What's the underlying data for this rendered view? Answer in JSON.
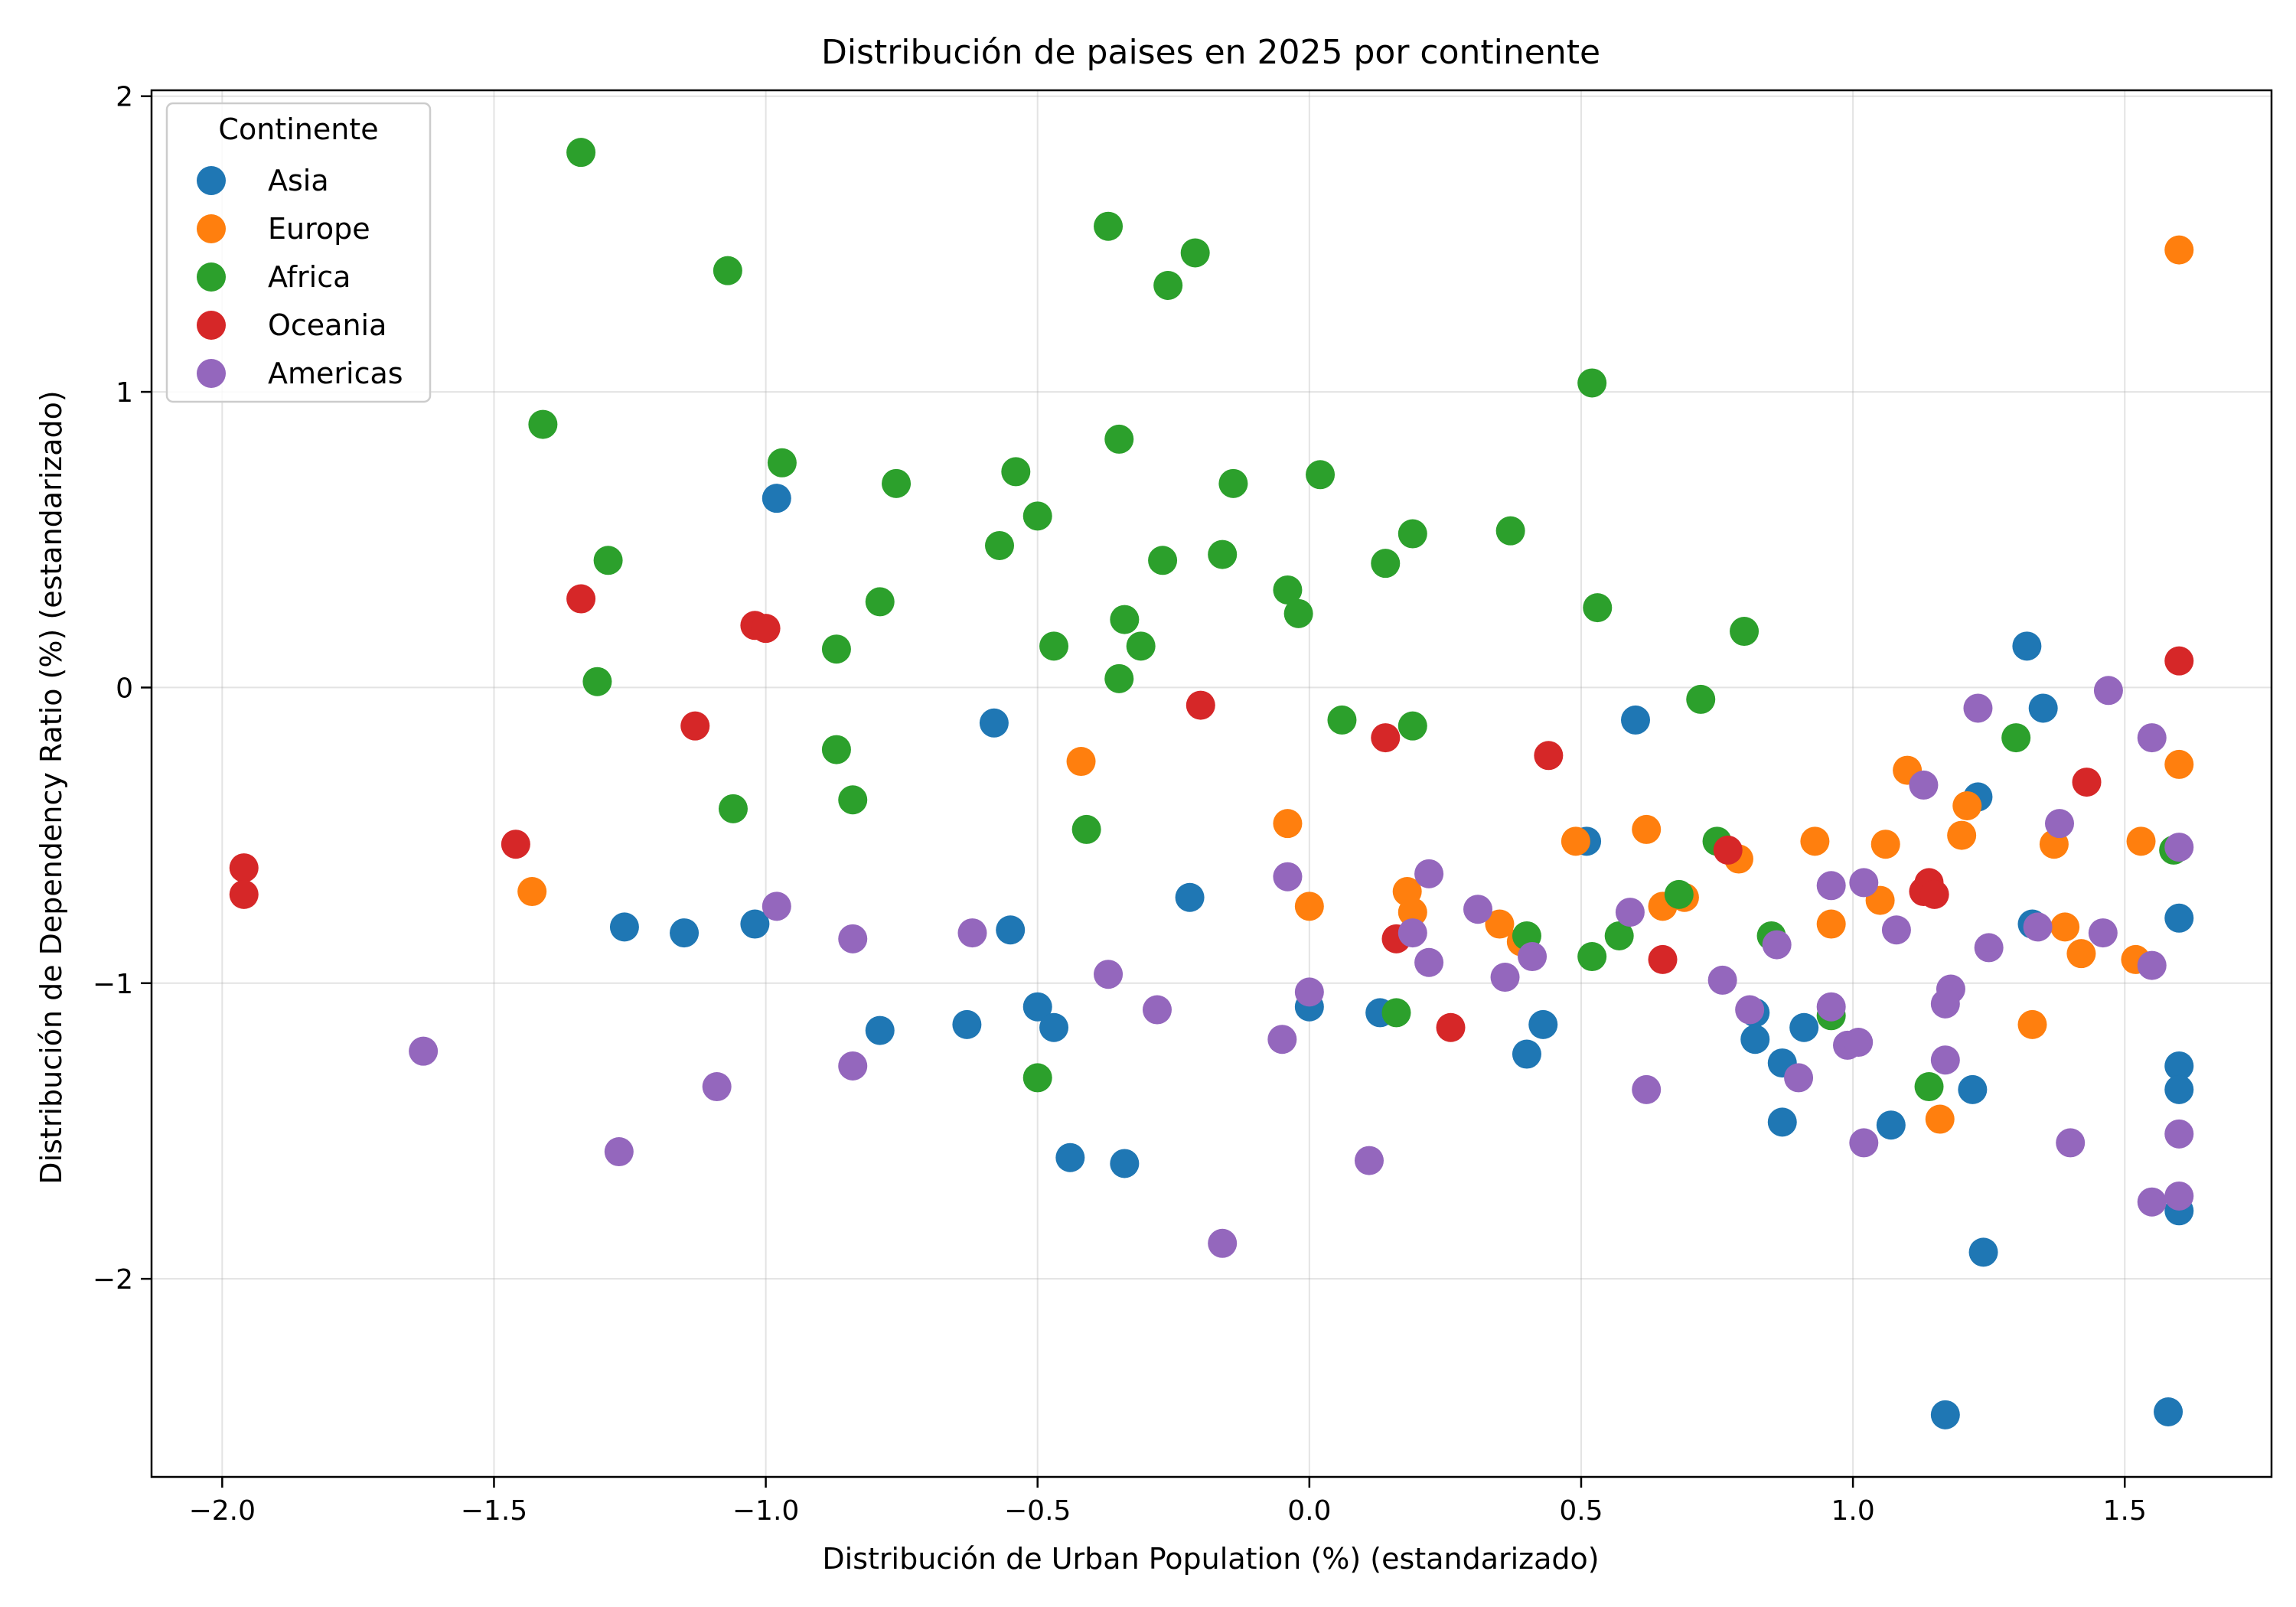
{
  "chart_data": {
    "type": "scatter",
    "title": "Distribución de paises en 2025 por continente",
    "xlabel": "Distribución de Urban Population (%) (estandarizado)",
    "ylabel": "Distribución de Dependency Ratio (%) (estandarizado)",
    "xlim": [
      -2.13,
      1.77
    ],
    "ylim": [
      -2.67,
      2.02
    ],
    "xticks": [
      -2.0,
      -1.5,
      -1.0,
      -0.5,
      0.0,
      0.5,
      1.0,
      1.5
    ],
    "xtick_labels": [
      "−2.0",
      "−1.5",
      "−1.0",
      "−0.5",
      "0.0",
      "0.5",
      "1.0",
      "1.5"
    ],
    "yticks": [
      -2,
      -1,
      0,
      1,
      2
    ],
    "ytick_labels": [
      "−2",
      "−1",
      "0",
      "1",
      "2"
    ],
    "grid": true,
    "legend": {
      "title": "Continente",
      "position": "top-left"
    },
    "series": [
      {
        "name": "Asia",
        "color": "#1f77b4",
        "points": [
          [
            -0.98,
            0.64
          ],
          [
            -0.58,
            -0.12
          ],
          [
            0.6,
            -0.11
          ],
          [
            1.32,
            0.14
          ],
          [
            1.35,
            -0.07
          ],
          [
            1.23,
            -0.37
          ],
          [
            0.51,
            -0.52
          ],
          [
            -1.26,
            -0.81
          ],
          [
            -1.15,
            -0.83
          ],
          [
            -1.02,
            -0.8
          ],
          [
            -0.55,
            -0.82
          ],
          [
            -0.22,
            -0.71
          ],
          [
            -0.5,
            -1.08
          ],
          [
            -0.47,
            -1.15
          ],
          [
            -0.63,
            -1.14
          ],
          [
            -0.79,
            -1.16
          ],
          [
            0.0,
            -1.08
          ],
          [
            0.13,
            -1.1
          ],
          [
            0.43,
            -1.14
          ],
          [
            0.4,
            -1.24
          ],
          [
            0.82,
            -1.1
          ],
          [
            0.82,
            -1.19
          ],
          [
            0.87,
            -1.27
          ],
          [
            0.91,
            -1.15
          ],
          [
            0.87,
            -1.47
          ],
          [
            1.07,
            -1.48
          ],
          [
            1.22,
            -1.36
          ],
          [
            1.33,
            -0.8
          ],
          [
            1.6,
            -0.78
          ],
          [
            1.6,
            -1.28
          ],
          [
            1.6,
            -1.36
          ],
          [
            1.6,
            -1.77
          ],
          [
            1.24,
            -1.91
          ],
          [
            -0.44,
            -1.59
          ],
          [
            -0.34,
            -1.61
          ],
          [
            1.17,
            -2.46
          ],
          [
            1.58,
            -2.45
          ]
        ]
      },
      {
        "name": "Europe",
        "color": "#ff7f0e",
        "points": [
          [
            1.6,
            1.48
          ],
          [
            1.6,
            -0.26
          ],
          [
            1.1,
            -0.28
          ],
          [
            1.21,
            -0.4
          ],
          [
            -0.42,
            -0.25
          ],
          [
            -0.04,
            -0.46
          ],
          [
            0.49,
            -0.52
          ],
          [
            0.62,
            -0.48
          ],
          [
            0.79,
            -0.58
          ],
          [
            0.93,
            -0.52
          ],
          [
            1.06,
            -0.53
          ],
          [
            1.2,
            -0.5
          ],
          [
            1.37,
            -0.53
          ],
          [
            1.53,
            -0.52
          ],
          [
            -1.43,
            -0.69
          ],
          [
            0.0,
            -0.74
          ],
          [
            0.18,
            -0.69
          ],
          [
            0.19,
            -0.76
          ],
          [
            0.35,
            -0.8
          ],
          [
            0.39,
            -0.86
          ],
          [
            0.65,
            -0.74
          ],
          [
            0.69,
            -0.71
          ],
          [
            0.96,
            -0.8
          ],
          [
            1.05,
            -0.72
          ],
          [
            1.39,
            -0.81
          ],
          [
            1.42,
            -0.9
          ],
          [
            1.52,
            -0.92
          ],
          [
            1.33,
            -1.14
          ],
          [
            1.16,
            -1.46
          ]
        ]
      },
      {
        "name": "Africa",
        "color": "#2ca02c",
        "points": [
          [
            -1.34,
            1.81
          ],
          [
            -0.37,
            1.56
          ],
          [
            -0.21,
            1.47
          ],
          [
            -1.07,
            1.41
          ],
          [
            -0.26,
            1.36
          ],
          [
            0.52,
            1.03
          ],
          [
            -1.41,
            0.89
          ],
          [
            -0.35,
            0.84
          ],
          [
            -0.97,
            0.76
          ],
          [
            -0.54,
            0.73
          ],
          [
            0.02,
            0.72
          ],
          [
            -0.76,
            0.69
          ],
          [
            -0.14,
            0.69
          ],
          [
            -0.5,
            0.58
          ],
          [
            0.37,
            0.53
          ],
          [
            0.19,
            0.52
          ],
          [
            -0.57,
            0.48
          ],
          [
            -0.16,
            0.45
          ],
          [
            -1.29,
            0.43
          ],
          [
            -0.27,
            0.43
          ],
          [
            0.14,
            0.42
          ],
          [
            -0.04,
            0.33
          ],
          [
            -0.79,
            0.29
          ],
          [
            -0.02,
            0.25
          ],
          [
            0.53,
            0.27
          ],
          [
            -0.34,
            0.23
          ],
          [
            0.8,
            0.19
          ],
          [
            -0.87,
            0.13
          ],
          [
            -0.47,
            0.14
          ],
          [
            -0.31,
            0.14
          ],
          [
            -1.31,
            0.02
          ],
          [
            -0.35,
            0.03
          ],
          [
            0.72,
            -0.04
          ],
          [
            0.06,
            -0.11
          ],
          [
            0.19,
            -0.13
          ],
          [
            1.3,
            -0.17
          ],
          [
            -0.87,
            -0.21
          ],
          [
            -0.84,
            -0.38
          ],
          [
            -1.06,
            -0.41
          ],
          [
            -0.41,
            -0.48
          ],
          [
            0.75,
            -0.52
          ],
          [
            1.59,
            -0.55
          ],
          [
            0.68,
            -0.7
          ],
          [
            0.4,
            -0.84
          ],
          [
            0.57,
            -0.84
          ],
          [
            0.85,
            -0.84
          ],
          [
            0.52,
            -0.91
          ],
          [
            0.16,
            -1.1
          ],
          [
            0.96,
            -1.11
          ],
          [
            -0.5,
            -1.32
          ],
          [
            1.14,
            -1.35
          ]
        ]
      },
      {
        "name": "Oceania",
        "color": "#d62728",
        "points": [
          [
            -1.34,
            0.3
          ],
          [
            -1.02,
            0.21
          ],
          [
            -1.0,
            0.2
          ],
          [
            1.6,
            0.09
          ],
          [
            -0.2,
            -0.06
          ],
          [
            -1.13,
            -0.13
          ],
          [
            0.14,
            -0.17
          ],
          [
            0.44,
            -0.23
          ],
          [
            1.43,
            -0.32
          ],
          [
            -1.46,
            -0.53
          ],
          [
            0.77,
            -0.55
          ],
          [
            -1.96,
            -0.61
          ],
          [
            -1.96,
            -0.7
          ],
          [
            1.13,
            -0.69
          ],
          [
            1.14,
            -0.66
          ],
          [
            1.15,
            -0.7
          ],
          [
            0.16,
            -0.85
          ],
          [
            0.65,
            -0.92
          ],
          [
            0.26,
            -1.15
          ]
        ]
      },
      {
        "name": "Americas",
        "color": "#9467bd",
        "points": [
          [
            1.47,
            -0.01
          ],
          [
            1.23,
            -0.07
          ],
          [
            1.55,
            -0.17
          ],
          [
            1.13,
            -0.33
          ],
          [
            1.38,
            -0.46
          ],
          [
            1.6,
            -0.54
          ],
          [
            0.22,
            -0.63
          ],
          [
            -0.04,
            -0.64
          ],
          [
            0.96,
            -0.67
          ],
          [
            1.02,
            -0.66
          ],
          [
            -0.98,
            -0.74
          ],
          [
            0.31,
            -0.75
          ],
          [
            0.59,
            -0.76
          ],
          [
            1.08,
            -0.82
          ],
          [
            1.34,
            -0.81
          ],
          [
            1.46,
            -0.83
          ],
          [
            -0.84,
            -0.85
          ],
          [
            -0.62,
            -0.83
          ],
          [
            0.19,
            -0.83
          ],
          [
            0.86,
            -0.87
          ],
          [
            1.25,
            -0.88
          ],
          [
            0.41,
            -0.91
          ],
          [
            0.22,
            -0.93
          ],
          [
            1.55,
            -0.94
          ],
          [
            -0.37,
            -0.97
          ],
          [
            0.36,
            -0.98
          ],
          [
            0.76,
            -0.99
          ],
          [
            1.18,
            -1.02
          ],
          [
            0.0,
            -1.03
          ],
          [
            1.17,
            -1.07
          ],
          [
            0.96,
            -1.08
          ],
          [
            -0.28,
            -1.09
          ],
          [
            0.81,
            -1.09
          ],
          [
            -1.63,
            -1.23
          ],
          [
            -0.05,
            -1.19
          ],
          [
            0.99,
            -1.21
          ],
          [
            1.01,
            -1.2
          ],
          [
            1.17,
            -1.26
          ],
          [
            0.9,
            -1.32
          ],
          [
            -0.84,
            -1.28
          ],
          [
            -1.09,
            -1.35
          ],
          [
            0.62,
            -1.36
          ],
          [
            1.02,
            -1.54
          ],
          [
            1.4,
            -1.54
          ],
          [
            1.6,
            -1.51
          ],
          [
            -1.27,
            -1.57
          ],
          [
            0.11,
            -1.6
          ],
          [
            1.55,
            -1.74
          ],
          [
            1.6,
            -1.72
          ],
          [
            -0.16,
            -1.88
          ]
        ]
      }
    ]
  }
}
